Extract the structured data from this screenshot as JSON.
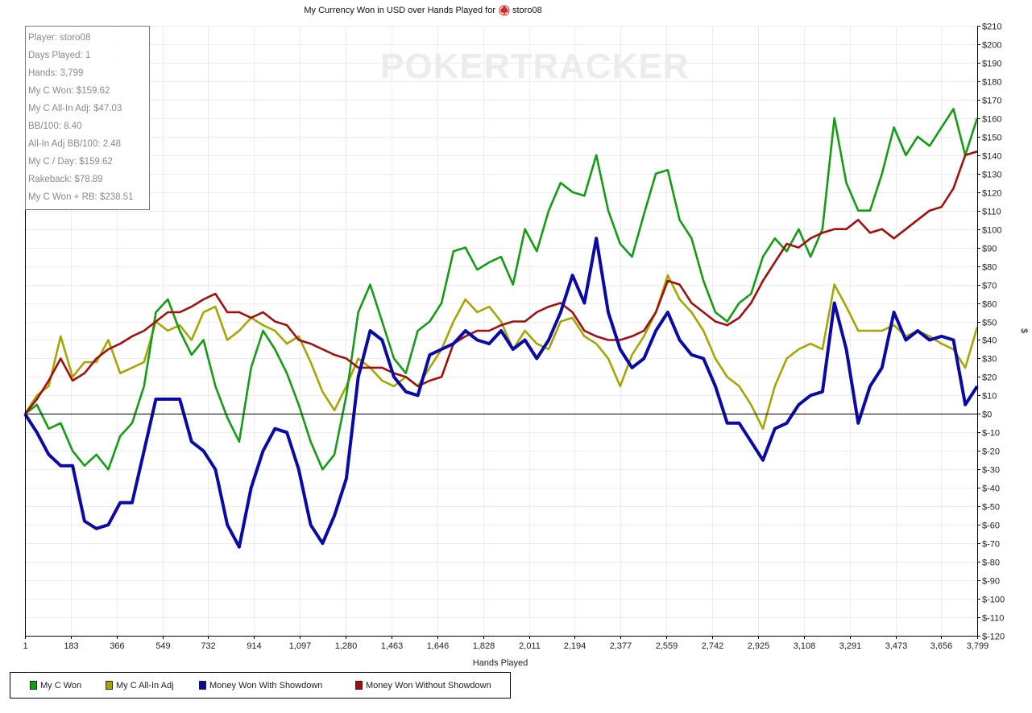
{
  "chart_data": {
    "type": "line",
    "title": "My Currency Won in USD over Hands Played for",
    "title_player": "storo08",
    "title_icon": "pokerstars-spade-icon",
    "watermark": "POKERTRACKER",
    "xlabel": "Hands Played",
    "ylabel": "$",
    "xlim": [
      1,
      3799
    ],
    "ylim": [
      -120,
      210
    ],
    "x_ticks": [
      "1",
      "183",
      "366",
      "549",
      "732",
      "914",
      "1,097",
      "1,280",
      "1,463",
      "1,646",
      "1,828",
      "2,011",
      "2,194",
      "2,377",
      "2,559",
      "2,742",
      "2,925",
      "3,108",
      "3,291",
      "3,473",
      "3,656",
      "3,799"
    ],
    "x_tick_values": [
      1,
      183,
      366,
      549,
      732,
      914,
      1097,
      1280,
      1463,
      1646,
      1828,
      2011,
      2194,
      2377,
      2559,
      2742,
      2925,
      3108,
      3291,
      3473,
      3656,
      3799
    ],
    "y_ticks": [
      210,
      200,
      190,
      180,
      170,
      160,
      150,
      140,
      130,
      120,
      110,
      100,
      90,
      80,
      70,
      60,
      50,
      40,
      30,
      20,
      10,
      0,
      -10,
      -20,
      -30,
      -40,
      -50,
      -60,
      -70,
      -80,
      -90,
      -100,
      -110,
      -120
    ],
    "grid": true,
    "legend_position": "bottom-left",
    "x_sampling": {
      "start": 1,
      "end": 3799,
      "points": 81
    },
    "series": [
      {
        "name": "My C Won",
        "color": "#129d12",
        "values": [
          0,
          5,
          -8,
          -5,
          -20,
          -28,
          -22,
          -30,
          -12,
          -5,
          15,
          55,
          62,
          45,
          32,
          40,
          15,
          -2,
          -15,
          25,
          45,
          35,
          22,
          5,
          -15,
          -30,
          -22,
          10,
          55,
          70,
          50,
          30,
          22,
          45,
          50,
          60,
          88,
          90,
          78,
          82,
          85,
          70,
          100,
          88,
          110,
          125,
          120,
          118,
          140,
          110,
          92,
          85,
          108,
          130,
          132,
          105,
          95,
          72,
          55,
          50,
          60,
          65,
          85,
          95,
          88,
          100,
          85,
          100,
          160,
          125,
          110,
          110,
          130,
          155,
          140,
          150,
          145,
          155,
          165,
          140,
          160
        ]
      },
      {
        "name": "My C All-In Adj",
        "color": "#a6a600",
        "values": [
          0,
          10,
          15,
          42,
          20,
          28,
          28,
          40,
          22,
          25,
          28,
          50,
          45,
          48,
          40,
          55,
          58,
          40,
          45,
          52,
          48,
          45,
          38,
          42,
          28,
          12,
          2,
          15,
          30,
          25,
          18,
          15,
          20,
          15,
          25,
          35,
          50,
          62,
          55,
          58,
          50,
          35,
          45,
          38,
          35,
          50,
          52,
          42,
          38,
          30,
          15,
          32,
          42,
          55,
          75,
          62,
          55,
          45,
          30,
          20,
          15,
          5,
          -8,
          15,
          30,
          35,
          38,
          35,
          70,
          58,
          45,
          45,
          45,
          48,
          42,
          45,
          42,
          38,
          35,
          25,
          47
        ]
      },
      {
        "name": "Money Won With Showdown",
        "color": "#0a0aa8",
        "values": [
          0,
          -10,
          -22,
          -28,
          -28,
          -58,
          -62,
          -60,
          -48,
          -48,
          -20,
          8,
          8,
          8,
          -15,
          -20,
          -30,
          -60,
          -72,
          -40,
          -20,
          -8,
          -10,
          -30,
          -60,
          -70,
          -55,
          -35,
          20,
          45,
          40,
          20,
          12,
          10,
          32,
          35,
          38,
          45,
          40,
          38,
          45,
          35,
          40,
          30,
          40,
          55,
          75,
          60,
          95,
          55,
          35,
          25,
          30,
          45,
          55,
          40,
          32,
          30,
          15,
          -5,
          -5,
          -15,
          -25,
          -8,
          -5,
          5,
          10,
          12,
          60,
          35,
          -5,
          15,
          25,
          55,
          40,
          45,
          40,
          42,
          40,
          5,
          15
        ]
      },
      {
        "name": "Money Won Without Showdown",
        "color": "#a30f0f",
        "values": [
          0,
          8,
          18,
          30,
          18,
          22,
          30,
          35,
          38,
          42,
          45,
          50,
          55,
          55,
          58,
          62,
          65,
          55,
          55,
          52,
          55,
          50,
          48,
          40,
          38,
          35,
          32,
          30,
          25,
          25,
          25,
          22,
          20,
          15,
          18,
          20,
          38,
          42,
          45,
          45,
          48,
          50,
          50,
          55,
          58,
          60,
          55,
          45,
          42,
          40,
          40,
          42,
          45,
          55,
          72,
          70,
          60,
          55,
          50,
          48,
          52,
          60,
          72,
          82,
          92,
          90,
          95,
          98,
          100,
          100,
          105,
          98,
          100,
          95,
          100,
          105,
          110,
          112,
          122,
          140,
          142
        ]
      }
    ]
  },
  "stats": [
    "Player: storo08",
    "Days Played: 1",
    "Hands: 3,799",
    "My C Won: $159.62",
    "My C All-In Adj: $47.03",
    "BB/100: 8.40",
    "All-In Adj BB/100: 2.48",
    "My C / Day: $159.62",
    "Rakeback: $78.89",
    "My C Won + RB: $238.51"
  ]
}
